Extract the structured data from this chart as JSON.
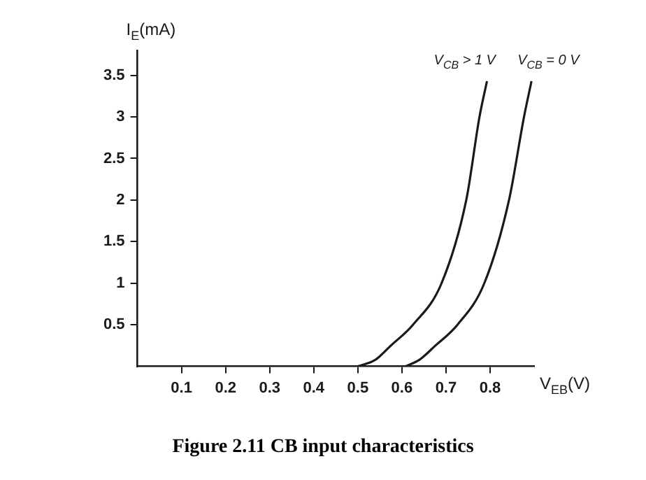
{
  "chart_data": {
    "type": "line",
    "xlabel": "V$_{EB}$(V)",
    "ylabel": "I$_{E}$(mA)",
    "series": [
      {
        "name": "V$_{CB}$ > 1 V",
        "color": "#1a1a1a",
        "x": [
          0.5,
          0.54,
          0.575,
          0.625,
          0.69,
          0.746,
          0.776,
          0.793
        ],
        "values": [
          0,
          0.08,
          0.25,
          0.5,
          1,
          2,
          3,
          3.43
        ]
      },
      {
        "name": "V$_{CB}$ = 0 V",
        "color": "#1a1a1a",
        "x": [
          0.608,
          0.64,
          0.676,
          0.726,
          0.787,
          0.843,
          0.877,
          0.894
        ],
        "values": [
          0,
          0.08,
          0.25,
          0.5,
          1,
          2,
          3,
          3.43
        ]
      }
    ],
    "xlim": [
      0,
      0.9
    ],
    "xticks": [
      0.1,
      0.2,
      0.3,
      0.4,
      0.5,
      0.6,
      0.7,
      0.8
    ],
    "ylim": [
      0,
      3.8
    ],
    "yticks": [
      0.5,
      1,
      1.5,
      2,
      2.5,
      3,
      3.5
    ],
    "grid": false,
    "legend": false,
    "marker": "none",
    "line_style": "solid",
    "annotations": [
      "Figure 2.11 CB input characteristics"
    ]
  }
}
